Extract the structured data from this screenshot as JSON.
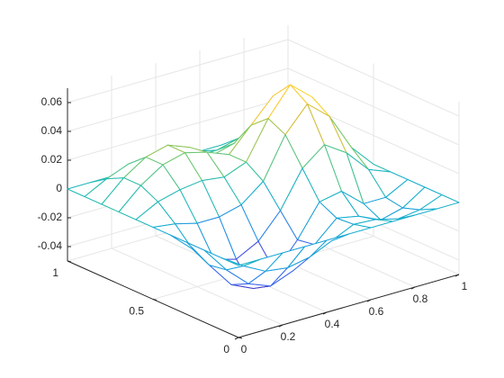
{
  "chart_data": {
    "type": "mesh",
    "colormap": "parula",
    "grid": true,
    "x": [
      0,
      0.1,
      0.2,
      0.3,
      0.4,
      0.5,
      0.6,
      0.7,
      0.8,
      0.9,
      1
    ],
    "y": [
      0,
      0.1,
      0.2,
      0.3,
      0.4,
      0.5,
      0.6,
      0.7,
      0.8,
      0.9,
      1
    ],
    "z": [
      [
        0,
        0,
        0,
        0,
        0,
        0,
        0,
        0,
        0,
        0,
        0
      ],
      [
        0,
        -0.01,
        -0.018,
        -0.02,
        -0.017,
        -0.01,
        -0.003,
        -0.004,
        -0.008,
        -0.006,
        0
      ],
      [
        0,
        -0.018,
        -0.032,
        -0.038,
        -0.032,
        -0.018,
        -0.004,
        -0.007,
        -0.014,
        -0.01,
        0
      ],
      [
        0,
        -0.02,
        -0.038,
        -0.045,
        -0.038,
        -0.02,
        0.002,
        0.005,
        -0.008,
        -0.008,
        0
      ],
      [
        0,
        -0.014,
        -0.026,
        -0.03,
        -0.022,
        -0.005,
        0.02,
        0.032,
        0.022,
        0.006,
        0
      ],
      [
        0,
        -0.002,
        -0.006,
        -0.006,
        -0.002,
        0.01,
        0.038,
        0.055,
        0.042,
        0.016,
        0
      ],
      [
        0,
        0.008,
        0.012,
        0.014,
        0.012,
        0.018,
        0.044,
        0.063,
        0.05,
        0.02,
        0
      ],
      [
        0,
        0.014,
        0.024,
        0.028,
        0.024,
        0.018,
        0.034,
        0.05,
        0.04,
        0.016,
        0
      ],
      [
        0,
        0.014,
        0.024,
        0.028,
        0.022,
        0.012,
        0.016,
        0.026,
        0.02,
        0.008,
        0
      ],
      [
        0,
        0.008,
        0.014,
        0.015,
        0.012,
        0.006,
        0.006,
        0.01,
        0.008,
        0.003,
        0
      ],
      [
        0,
        0,
        0,
        0,
        0,
        0,
        0,
        0,
        0,
        0,
        0
      ]
    ],
    "xlim": [
      0,
      1
    ],
    "xticks": [
      0,
      0.2,
      0.4,
      0.6,
      0.8,
      1
    ],
    "ylim": [
      0,
      1
    ],
    "yticks": [
      0,
      0.5,
      1
    ],
    "zlim": [
      -0.05,
      0.07
    ],
    "zticks": [
      -0.04,
      -0.02,
      0,
      0.02,
      0.04,
      0.06
    ]
  }
}
